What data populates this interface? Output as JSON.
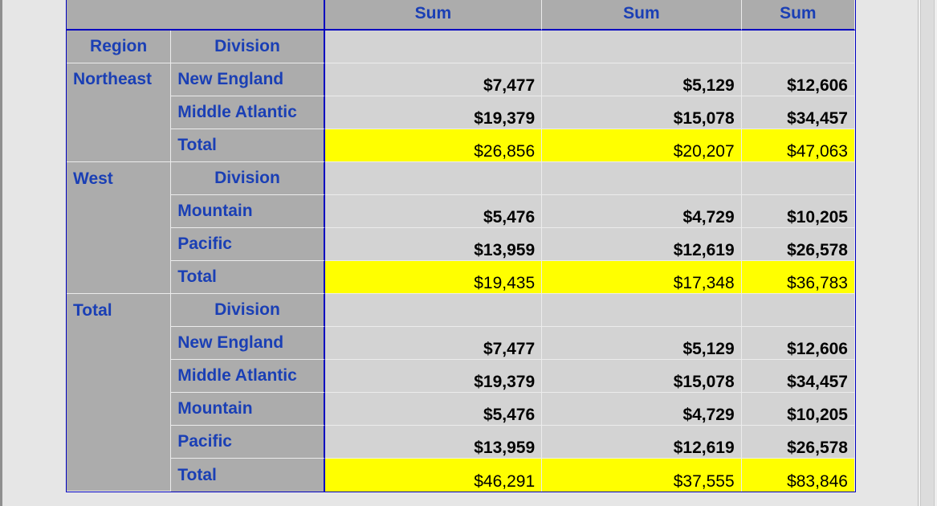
{
  "header": {
    "corner": "",
    "columns": [
      "Sum",
      "Sum",
      "Sum"
    ]
  },
  "row_labels": {
    "region": "Region",
    "division": "Division"
  },
  "groups": [
    {
      "region": "Northeast",
      "rows": [
        {
          "division": "New England",
          "values": [
            "$7,477",
            "$5,129",
            "$12,606"
          ],
          "total": false
        },
        {
          "division": "Middle Atlantic",
          "values": [
            "$19,379",
            "$15,078",
            "$34,457"
          ],
          "total": false
        },
        {
          "division": "Total",
          "values": [
            "$26,856",
            "$20,207",
            "$47,063"
          ],
          "total": true
        }
      ]
    },
    {
      "region": "West",
      "rows": [
        {
          "division": "Mountain",
          "values": [
            "$5,476",
            "$4,729",
            "$10,205"
          ],
          "total": false
        },
        {
          "division": "Pacific",
          "values": [
            "$13,959",
            "$12,619",
            "$26,578"
          ],
          "total": false
        },
        {
          "division": "Total",
          "values": [
            "$19,435",
            "$17,348",
            "$36,783"
          ],
          "total": true
        }
      ]
    },
    {
      "region": "Total",
      "rows": [
        {
          "division": "New England",
          "values": [
            "$7,477",
            "$5,129",
            "$12,606"
          ],
          "total": false
        },
        {
          "division": "Middle Atlantic",
          "values": [
            "$19,379",
            "$15,078",
            "$34,457"
          ],
          "total": false
        },
        {
          "division": "Mountain",
          "values": [
            "$5,476",
            "$4,729",
            "$10,205"
          ],
          "total": false
        },
        {
          "division": "Pacific",
          "values": [
            "$13,959",
            "$12,619",
            "$26,578"
          ],
          "total": false
        },
        {
          "division": "Total",
          "values": [
            "$46,291",
            "$37,555",
            "$83,846"
          ],
          "total": true
        }
      ]
    }
  ],
  "colors": {
    "label_text": "#1a3fb5",
    "header_bg": "#acacac",
    "data_bg": "#d3d3d3",
    "total_bg": "#ffff00",
    "border": "#0000c0"
  }
}
